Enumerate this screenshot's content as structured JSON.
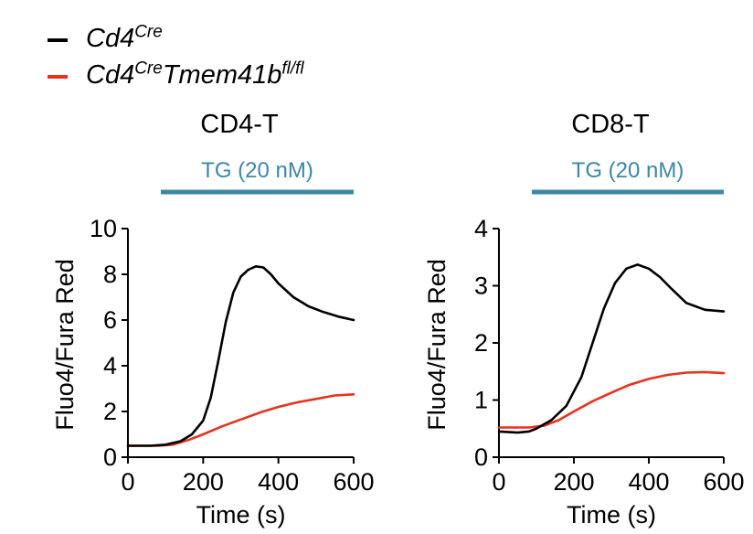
{
  "legend": {
    "items": [
      {
        "name": "Cd4Cre",
        "base": "Cd4",
        "sup1": "Cre",
        "mid": "",
        "sup2": "",
        "color": "#000000"
      },
      {
        "name": "Cd4CreTmem41bfl/fl",
        "base": "Cd4",
        "sup1": "Cre",
        "mid": "Tmem41b",
        "sup2": "fl/fl",
        "color": "#e8321e"
      }
    ]
  },
  "treatment_color": "#3c87a8",
  "chart_data": [
    {
      "type": "line",
      "title": "CD4-T",
      "treatment": {
        "label": "TG (20 nM)",
        "start": 90,
        "end": 600
      },
      "xlabel": "Time (s)",
      "ylabel": "Fluo4/Fura Red",
      "xlim": [
        0,
        600
      ],
      "ylim": [
        0,
        10
      ],
      "xticks": [
        0,
        200,
        400,
        600
      ],
      "yticks": [
        0,
        2,
        4,
        6,
        8,
        10
      ],
      "series": [
        {
          "name": "Cd4Cre",
          "color": "#000000",
          "x": [
            0,
            60,
            100,
            140,
            170,
            200,
            220,
            240,
            260,
            280,
            300,
            320,
            340,
            360,
            380,
            400,
            440,
            480,
            520,
            560,
            600
          ],
          "y": [
            0.5,
            0.5,
            0.55,
            0.7,
            1.0,
            1.6,
            2.6,
            4.2,
            5.9,
            7.2,
            7.9,
            8.2,
            8.35,
            8.3,
            8.0,
            7.6,
            7.0,
            6.6,
            6.35,
            6.15,
            6.0
          ]
        },
        {
          "name": "Cd4CreTmem41bfl/fl",
          "color": "#e8321e",
          "x": [
            0,
            80,
            120,
            160,
            200,
            250,
            300,
            350,
            400,
            450,
            500,
            550,
            600
          ],
          "y": [
            0.5,
            0.5,
            0.55,
            0.75,
            1.0,
            1.35,
            1.65,
            1.95,
            2.2,
            2.4,
            2.55,
            2.7,
            2.75
          ]
        }
      ]
    },
    {
      "type": "line",
      "title": "CD8-T",
      "treatment": {
        "label": "TG (20 nM)",
        "start": 90,
        "end": 600
      },
      "xlabel": "Time (s)",
      "ylabel": "Fluo4/Fura Red",
      "xlim": [
        0,
        600
      ],
      "ylim": [
        0,
        4
      ],
      "xticks": [
        0,
        200,
        400,
        600
      ],
      "yticks": [
        0,
        1,
        2,
        3,
        4
      ],
      "series": [
        {
          "name": "Cd4Cre",
          "color": "#000000",
          "x": [
            0,
            50,
            80,
            100,
            140,
            180,
            220,
            250,
            280,
            310,
            340,
            370,
            400,
            430,
            460,
            500,
            550,
            600
          ],
          "y": [
            0.45,
            0.43,
            0.45,
            0.5,
            0.65,
            0.9,
            1.4,
            2.0,
            2.6,
            3.05,
            3.3,
            3.37,
            3.3,
            3.15,
            2.95,
            2.7,
            2.58,
            2.55
          ]
        },
        {
          "name": "Cd4CreTmem41bfl/fl",
          "color": "#e8321e",
          "x": [
            0,
            80,
            120,
            160,
            200,
            250,
            300,
            350,
            400,
            450,
            500,
            550,
            600
          ],
          "y": [
            0.52,
            0.52,
            0.55,
            0.65,
            0.8,
            0.98,
            1.13,
            1.27,
            1.37,
            1.44,
            1.48,
            1.49,
            1.47
          ]
        }
      ]
    }
  ]
}
